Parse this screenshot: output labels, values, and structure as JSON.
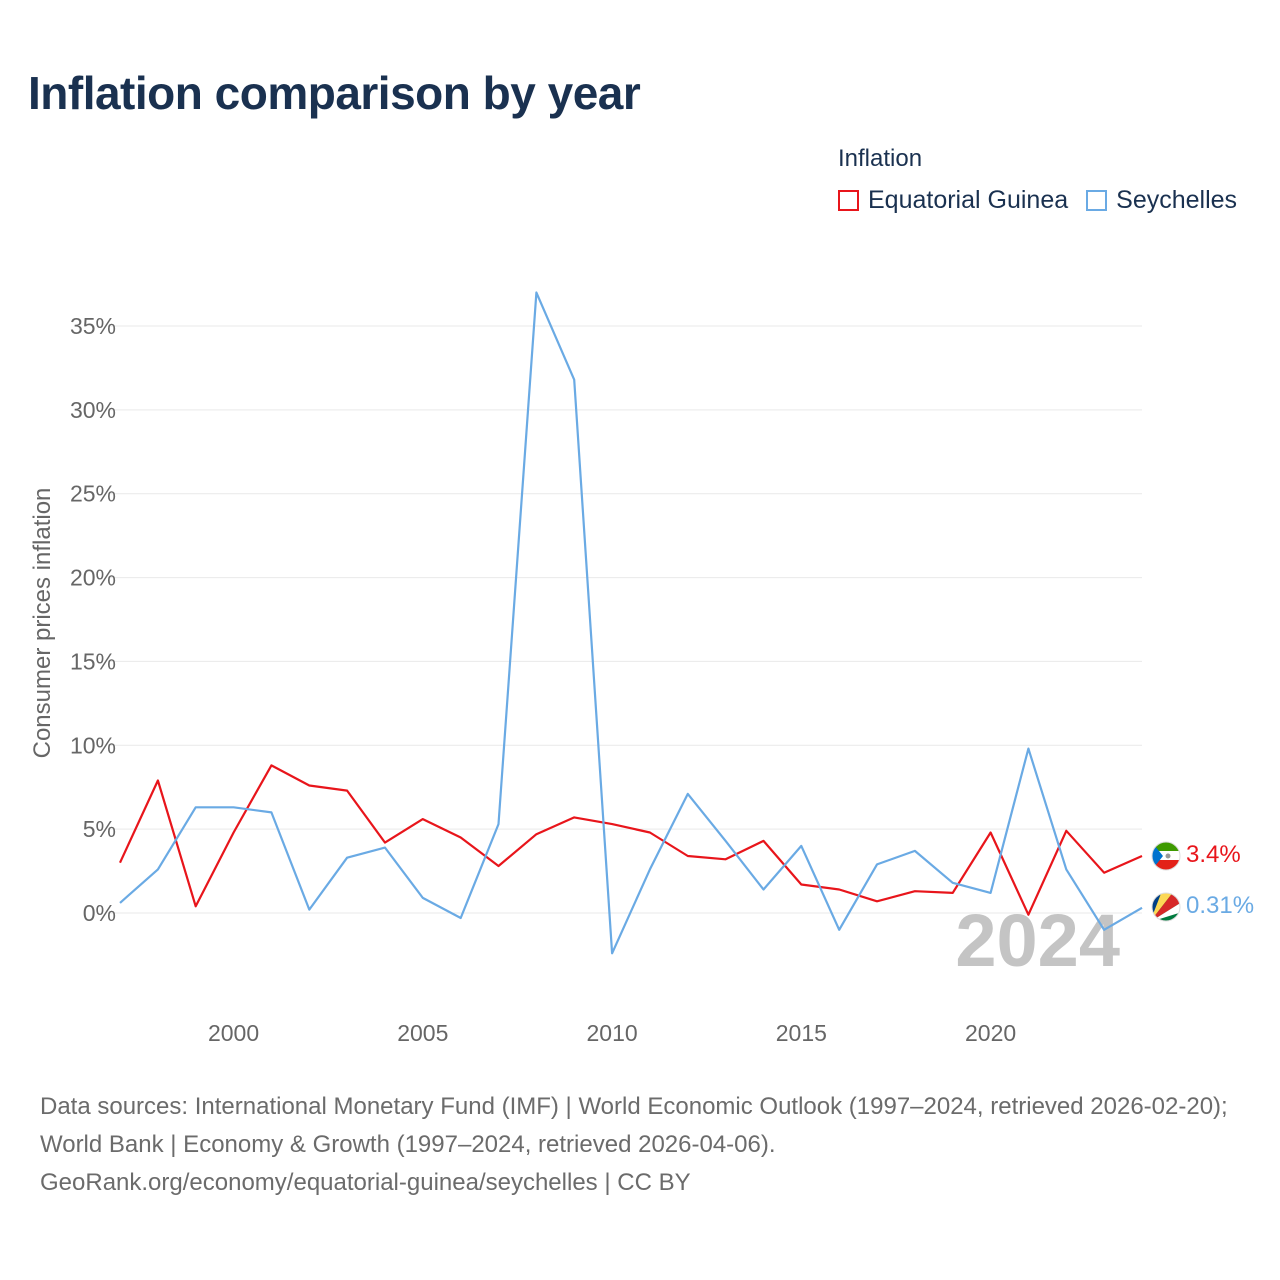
{
  "header": {
    "title": "Inflation comparison by year"
  },
  "legend": {
    "title": "Inflation",
    "items": [
      {
        "name": "Equatorial Guinea",
        "color": "#e8151b"
      },
      {
        "name": "Seychelles",
        "color": "#6aaae4"
      }
    ]
  },
  "chart_data": {
    "type": "line",
    "ylabel": "Consumer prices inflation",
    "xlabel": "",
    "x_range": [
      1997,
      2024
    ],
    "ylim": [
      -5,
      38
    ],
    "x_ticks": [
      {
        "value": 2000,
        "label": "2000"
      },
      {
        "value": 2005,
        "label": "2005"
      },
      {
        "value": 2010,
        "label": "2010"
      },
      {
        "value": 2015,
        "label": "2015"
      },
      {
        "value": 2020,
        "label": "2020"
      }
    ],
    "y_ticks": [
      {
        "value": 0,
        "label": "0%"
      },
      {
        "value": 5,
        "label": "5%"
      },
      {
        "value": 10,
        "label": "10%"
      },
      {
        "value": 15,
        "label": "15%"
      },
      {
        "value": 20,
        "label": "20%"
      },
      {
        "value": 25,
        "label": "25%"
      },
      {
        "value": 30,
        "label": "30%"
      },
      {
        "value": 35,
        "label": "35%"
      }
    ],
    "grid": true,
    "year_watermark": "2024",
    "x": [
      1997,
      1998,
      1999,
      2000,
      2001,
      2002,
      2003,
      2004,
      2005,
      2006,
      2007,
      2008,
      2009,
      2010,
      2011,
      2012,
      2013,
      2014,
      2015,
      2016,
      2017,
      2018,
      2019,
      2020,
      2021,
      2022,
      2023,
      2024
    ],
    "series": [
      {
        "name": "Equatorial Guinea",
        "color": "#e8151b",
        "values": [
          3.0,
          7.9,
          0.4,
          4.8,
          8.8,
          7.6,
          7.3,
          4.2,
          5.6,
          4.5,
          2.8,
          4.7,
          5.7,
          5.3,
          4.8,
          3.4,
          3.2,
          4.3,
          1.7,
          1.4,
          0.7,
          1.3,
          1.2,
          4.8,
          -0.1,
          4.9,
          2.4,
          3.4
        ],
        "end_label": "3.4%"
      },
      {
        "name": "Seychelles",
        "color": "#6aaae4",
        "values": [
          0.6,
          2.6,
          6.3,
          6.3,
          6.0,
          0.2,
          3.3,
          3.9,
          0.9,
          -0.3,
          5.3,
          37.0,
          31.8,
          -2.4,
          2.6,
          7.1,
          4.3,
          1.4,
          4.0,
          -1.0,
          2.9,
          3.7,
          1.8,
          1.2,
          9.8,
          2.6,
          -1.0,
          0.31
        ],
        "end_label": "0.31%"
      }
    ]
  },
  "footer": {
    "sources": "Data sources: International Monetary Fund (IMF) | World Economic Outlook (1997–2024, retrieved 2026-02-20); World Bank | Economy & Growth (1997–2024, retrieved 2026-04-06).",
    "attribution": "GeoRank.org/economy/equatorial-guinea/seychelles | CC BY"
  }
}
